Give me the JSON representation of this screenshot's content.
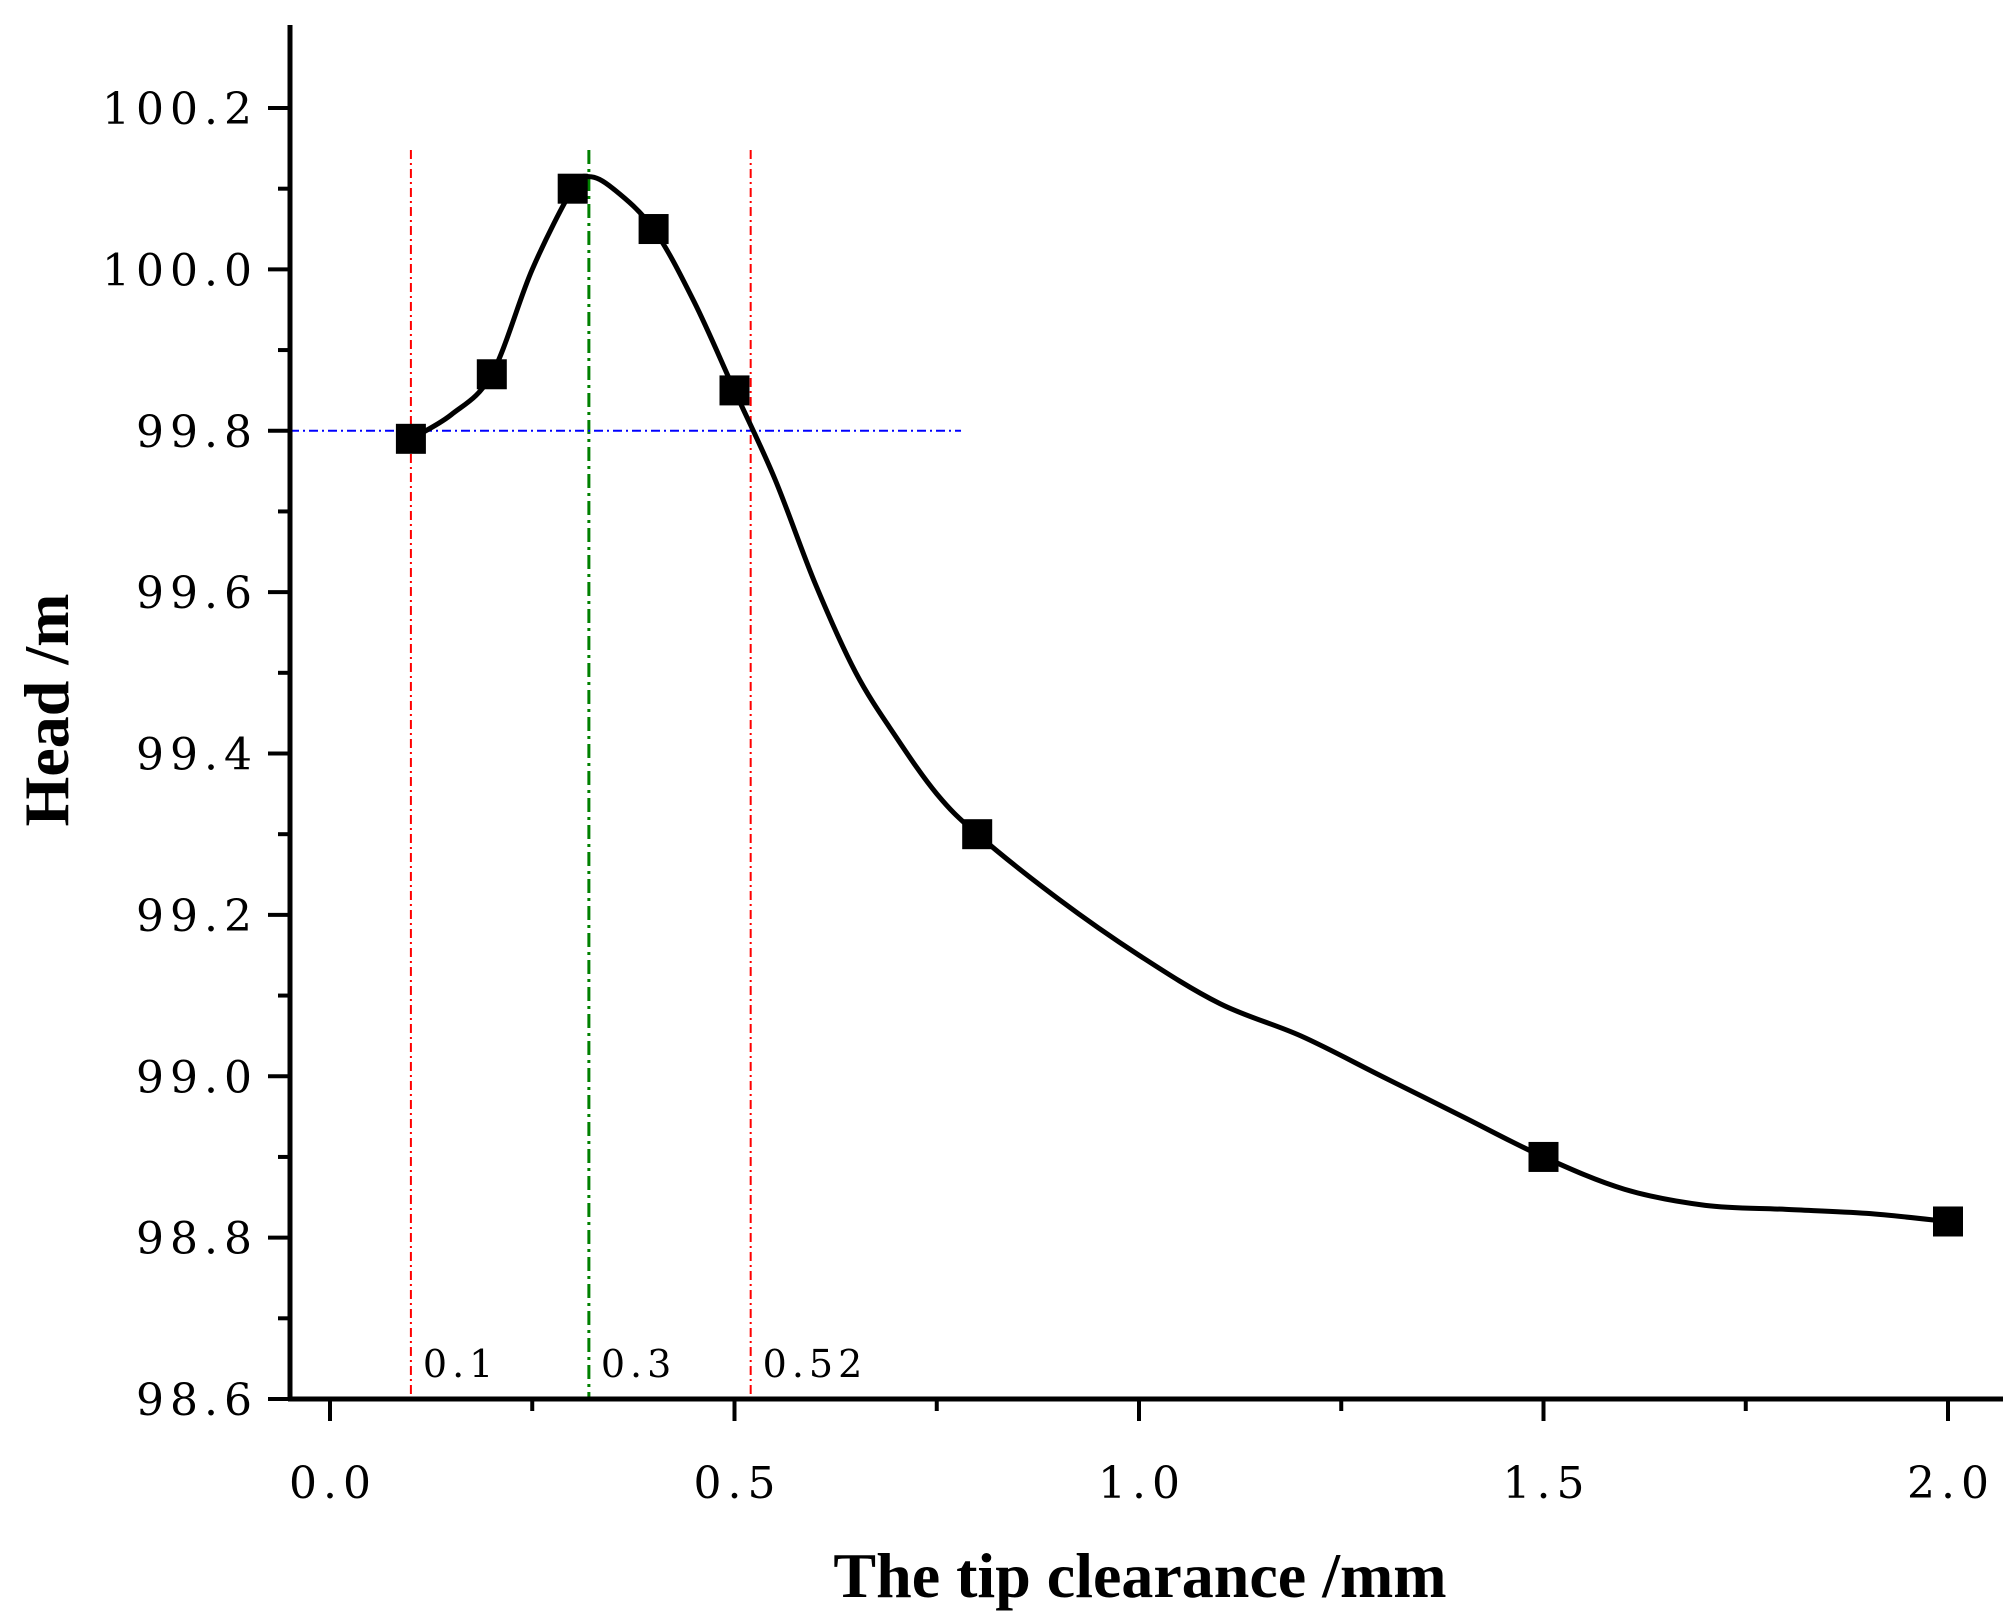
{
  "chart_data": {
    "type": "line",
    "xlabel": "The tip clearance /mm",
    "ylabel": "Head /m",
    "xlim": [
      -0.05,
      2.05
    ],
    "ylim": [
      98.6,
      100.3
    ],
    "x_ticks": [
      {
        "value": 0.0,
        "label": "0.0"
      },
      {
        "value": 0.5,
        "label": "0.5"
      },
      {
        "value": 1.0,
        "label": "1.0"
      },
      {
        "value": 1.5,
        "label": "1.5"
      },
      {
        "value": 2.0,
        "label": "2.0"
      }
    ],
    "x_minor_ticks": [
      0.25,
      0.75,
      1.25,
      1.75
    ],
    "y_ticks": [
      {
        "value": 98.6,
        "label": "98.6"
      },
      {
        "value": 98.8,
        "label": "98.8"
      },
      {
        "value": 99.0,
        "label": "99.0"
      },
      {
        "value": 99.2,
        "label": "99.2"
      },
      {
        "value": 99.4,
        "label": "99.4"
      },
      {
        "value": 99.6,
        "label": "99.6"
      },
      {
        "value": 99.8,
        "label": "99.8"
      },
      {
        "value": 100.0,
        "label": "100.0"
      },
      {
        "value": 100.2,
        "label": "100.2"
      }
    ],
    "y_minor_ticks": [
      98.7,
      98.9,
      99.1,
      99.3,
      99.5,
      99.7,
      99.9,
      100.1
    ],
    "grid": false,
    "series": [
      {
        "marker": "square",
        "color": "#000000",
        "x": [
          0.1,
          0.2,
          0.3,
          0.4,
          0.5,
          0.8,
          1.5,
          2.0
        ],
        "y": [
          99.79,
          99.87,
          100.1,
          100.05,
          99.85,
          99.3,
          98.9,
          98.82
        ],
        "curve": [
          [
            0.1,
            99.79
          ],
          [
            0.15,
            99.82
          ],
          [
            0.2,
            99.87
          ],
          [
            0.25,
            100.0
          ],
          [
            0.3,
            100.1
          ],
          [
            0.32,
            100.115
          ],
          [
            0.35,
            100.1
          ],
          [
            0.4,
            100.05
          ],
          [
            0.45,
            99.96
          ],
          [
            0.5,
            99.85
          ],
          [
            0.55,
            99.74
          ],
          [
            0.6,
            99.61
          ],
          [
            0.65,
            99.5
          ],
          [
            0.7,
            99.42
          ],
          [
            0.75,
            99.35
          ],
          [
            0.8,
            99.3
          ],
          [
            0.9,
            99.22
          ],
          [
            1.0,
            99.15
          ],
          [
            1.1,
            99.09
          ],
          [
            1.2,
            99.05
          ],
          [
            1.3,
            99.0
          ],
          [
            1.4,
            98.95
          ],
          [
            1.5,
            98.9
          ],
          [
            1.6,
            98.86
          ],
          [
            1.7,
            98.84
          ],
          [
            1.8,
            98.835
          ],
          [
            1.9,
            98.83
          ],
          [
            2.0,
            98.82
          ]
        ]
      }
    ],
    "reference_lines": [
      {
        "orientation": "vertical",
        "x": 0.1,
        "color": "#ff0000",
        "style": "dash-dot",
        "label": "0.1"
      },
      {
        "orientation": "vertical",
        "x": 0.32,
        "color": "#008000",
        "style": "dash-dot",
        "label": "0.3"
      },
      {
        "orientation": "vertical",
        "x": 0.52,
        "color": "#ff0000",
        "style": "dash-dot",
        "label": "0.52"
      },
      {
        "orientation": "horizontal",
        "y": 99.8,
        "x_start": 0.0,
        "x_end": 0.78,
        "color": "#0000ff",
        "style": "dash-dot"
      }
    ]
  }
}
